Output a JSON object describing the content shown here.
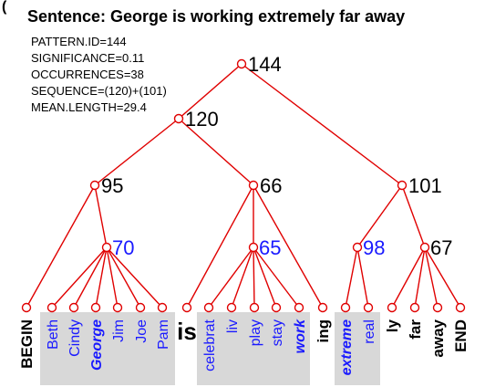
{
  "corner_mark": "(",
  "title": "Sentence: George is working extremely far away",
  "meta": [
    "PATTERN.ID=144",
    "SIGNIFICANCE=0.11",
    "OCCURRENCES=38",
    "SEQUENCE=(120)+(101)",
    "MEAN.LENGTH=29.4"
  ],
  "nodes": [
    {
      "label": "144",
      "color": "#000000"
    },
    {
      "label": "120",
      "color": "#000000"
    },
    {
      "label": "95",
      "color": "#000000"
    },
    {
      "label": "66",
      "color": "#000000"
    },
    {
      "label": "101",
      "color": "#000000"
    },
    {
      "label": "70",
      "color": "#1a1aff"
    },
    {
      "label": "65",
      "color": "#1a1aff"
    },
    {
      "label": "98",
      "color": "#1a1aff"
    },
    {
      "label": "67",
      "color": "#000000"
    }
  ],
  "leaves": [
    {
      "label": "BEGIN",
      "style": "black"
    },
    {
      "label": "Beth",
      "style": "blue"
    },
    {
      "label": "Cindy",
      "style": "blue"
    },
    {
      "label": "George",
      "style": "emph"
    },
    {
      "label": "Jim",
      "style": "blue"
    },
    {
      "label": "Joe",
      "style": "blue"
    },
    {
      "label": "Pam",
      "style": "blue"
    },
    {
      "label": "is",
      "style": "big"
    },
    {
      "label": "celebrat",
      "style": "blue"
    },
    {
      "label": "liv",
      "style": "blue"
    },
    {
      "label": "play",
      "style": "blue"
    },
    {
      "label": "stay",
      "style": "blue"
    },
    {
      "label": "work",
      "style": "emph"
    },
    {
      "label": "ing",
      "style": "black"
    },
    {
      "label": "extreme",
      "style": "emph"
    },
    {
      "label": "real",
      "style": "blue"
    },
    {
      "label": "ly",
      "style": "black"
    },
    {
      "label": "far",
      "style": "black"
    },
    {
      "label": "away",
      "style": "black"
    },
    {
      "label": "END",
      "style": "black"
    }
  ],
  "colors": {
    "edge": "#e00000",
    "equivalence_label": "#1a1aff",
    "box": "#d8d8d8"
  }
}
